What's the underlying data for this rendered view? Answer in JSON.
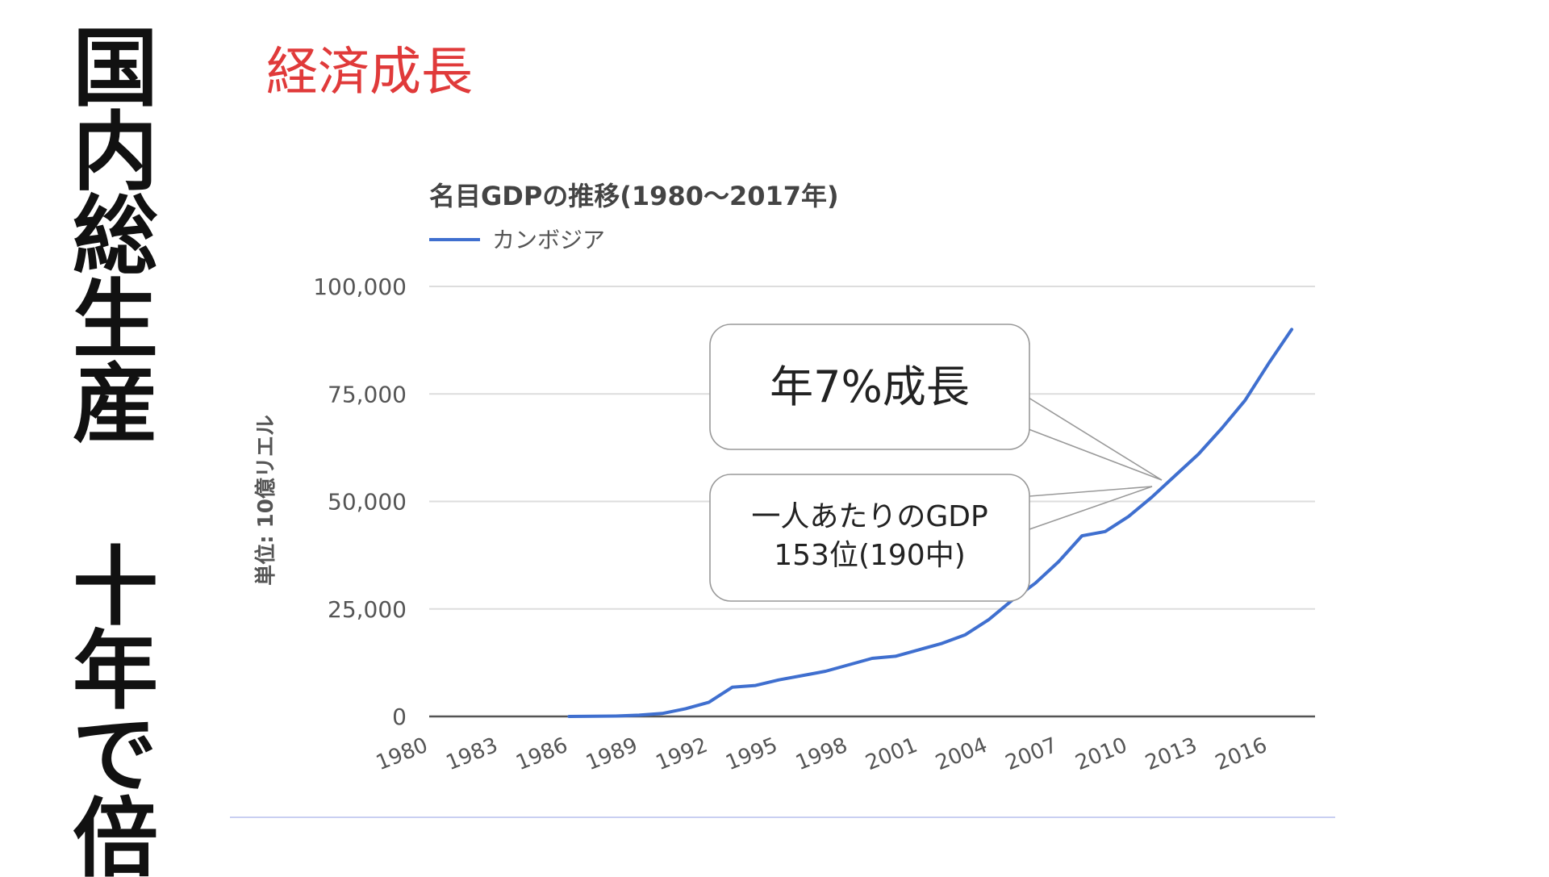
{
  "slide": {
    "vertical_title": "国内総生産 十年で倍",
    "heading": "経済成長",
    "colors": {
      "heading": "#e03a3a",
      "series": "#3f6fcf",
      "grid": "#dddddd"
    }
  },
  "callouts": {
    "growth": "年7%成長",
    "per_capita_line1": "一人あたりのGDP",
    "per_capita_line2": "153位(190中)"
  },
  "chart_data": {
    "type": "line",
    "title": "名目GDPの推移(1980〜2017年)",
    "ylabel": "単位: 10億リエル",
    "xlabel": "",
    "legend_position": "top-left",
    "grid": true,
    "xlim": [
      1980,
      2018
    ],
    "ylim": [
      0,
      100000
    ],
    "y_ticks": [
      "0",
      "25,000",
      "50,000",
      "75,000",
      "100,000"
    ],
    "y_tick_values": [
      0,
      25000,
      50000,
      75000,
      100000
    ],
    "x_ticks": [
      "1980",
      "1983",
      "1986",
      "1989",
      "1992",
      "1995",
      "1998",
      "2001",
      "2004",
      "2007",
      "2010",
      "2013",
      "2016"
    ],
    "x_tick_values": [
      1980,
      1983,
      1986,
      1989,
      1992,
      1995,
      1998,
      2001,
      2004,
      2007,
      2010,
      2013,
      2016
    ],
    "series": [
      {
        "name": "カンボジア",
        "color": "#3f6fcf",
        "x": [
          1986,
          1987,
          1988,
          1989,
          1990,
          1991,
          1992,
          1993,
          1994,
          1995,
          1996,
          1997,
          1998,
          1999,
          2000,
          2001,
          2002,
          2003,
          2004,
          2005,
          2006,
          2007,
          2008,
          2009,
          2010,
          2011,
          2012,
          2013,
          2014,
          2015,
          2016,
          2017
        ],
        "values": [
          0,
          50,
          100,
          300,
          700,
          1800,
          3300,
          6800,
          7200,
          8500,
          9500,
          10500,
          12000,
          13500,
          14000,
          15500,
          17000,
          19000,
          22500,
          27000,
          31000,
          36000,
          42000,
          43000,
          46500,
          51000,
          56000,
          61000,
          67000,
          73500,
          82000,
          90000
        ]
      }
    ]
  }
}
